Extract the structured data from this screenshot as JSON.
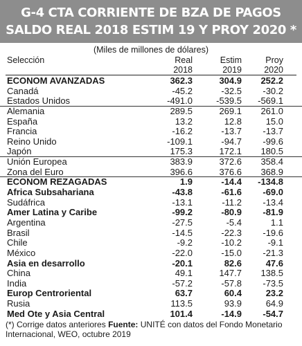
{
  "title": {
    "line1": "G-4  CTA CORRIENTE DE BZA DE PAGOS",
    "line2": "SALDO REAL 2018 ESTIM 19 Y PROY 2020 *"
  },
  "units": "(Miles de millones de dólares)",
  "header": {
    "selection": "Selección",
    "col1": [
      "Real",
      "2018"
    ],
    "col2": [
      "Estim",
      "2019"
    ],
    "col3": [
      "Proy",
      "2020"
    ]
  },
  "rows": [
    {
      "name": "ECONOM AVANZADAS",
      "v1": "362.3",
      "v2": "304.9",
      "v3": "252.2",
      "bold": true
    },
    {
      "name": "Canadá",
      "v1": "-45.2",
      "v2": "-32.5",
      "v3": "-30.2"
    },
    {
      "name": "Estados Unidos",
      "v1": "-491.0",
      "v2": "-539.5",
      "v3": "-569.1",
      "sep": true
    },
    {
      "name": "Alemania",
      "v1": "289.5",
      "v2": "269.1",
      "v3": "261.0"
    },
    {
      "name": "España",
      "v1": "13.2",
      "v2": "12.8",
      "v3": "15.0"
    },
    {
      "name": "Francia",
      "v1": "-16.2",
      "v2": "-13.7",
      "v3": "-13.7"
    },
    {
      "name": "Reino Unido",
      "v1": "-109.1",
      "v2": "-94.7",
      "v3": "-99.6"
    },
    {
      "name": "Japón",
      "v1": "175.3",
      "v2": "172.1",
      "v3": "180.5",
      "sep": true
    },
    {
      "name": "Unión Europea",
      "v1": "383.9",
      "v2": "372.6",
      "v3": "358.4"
    },
    {
      "name": "Zona del Euro",
      "v1": "396.6",
      "v2": "376.6",
      "v3": "368.9",
      "sep": true
    },
    {
      "name": "ECONOM REZAGADAS",
      "v1": "1.9",
      "v2": "-14.4",
      "v3": "-134.8",
      "bold": true
    },
    {
      "name": "Africa Subsahariana",
      "v1": "-43.8",
      "v2": "-61.6",
      "v3": "-69.0",
      "bold": true
    },
    {
      "name": "Sudáfrica",
      "v1": "-13.1",
      "v2": "-11.2",
      "v3": "-13.4"
    },
    {
      "name": "Amer Latina y Caribe",
      "v1": "-99.2",
      "v2": "-80.9",
      "v3": "-81.9",
      "bold": true
    },
    {
      "name": "Argentina",
      "v1": "-27.5",
      "v2": "-5.4",
      "v3": "1.1"
    },
    {
      "name": "Brasil",
      "v1": "-14.5",
      "v2": "-22.3",
      "v3": "-19.6"
    },
    {
      "name": "Chile",
      "v1": "-9.2",
      "v2": "-10.2",
      "v3": "-9.1"
    },
    {
      "name": "México",
      "v1": "-22.0",
      "v2": "-15.0",
      "v3": "-21.3"
    },
    {
      "name": "Asia en desarrollo",
      "v1": "-20.1",
      "v2": "82.6",
      "v3": "47.6",
      "bold": true
    },
    {
      "name": "China",
      "v1": "49.1",
      "v2": "147.7",
      "v3": "138.5"
    },
    {
      "name": "India",
      "v1": "-57.2",
      "v2": "-57.8",
      "v3": "-73.5"
    },
    {
      "name": "Europ Centroriental",
      "v1": "63.7",
      "v2": "60.4",
      "v3": "23.2",
      "bold": true
    },
    {
      "name": "Rusia",
      "v1": "113.5",
      "v2": "93.9",
      "v3": "64.9"
    },
    {
      "name": "Med Ote y Asia Central",
      "v1": "101.4",
      "v2": "-14.9",
      "v3": "-54.7",
      "bold": true
    }
  ],
  "footnote": {
    "note": "(*) Corrige datos anteriores ",
    "source_label": "Fuente:",
    "source_text": " UNITÉ con datos del Fondo Monetario Internacional, WEO, octubre 2019"
  }
}
